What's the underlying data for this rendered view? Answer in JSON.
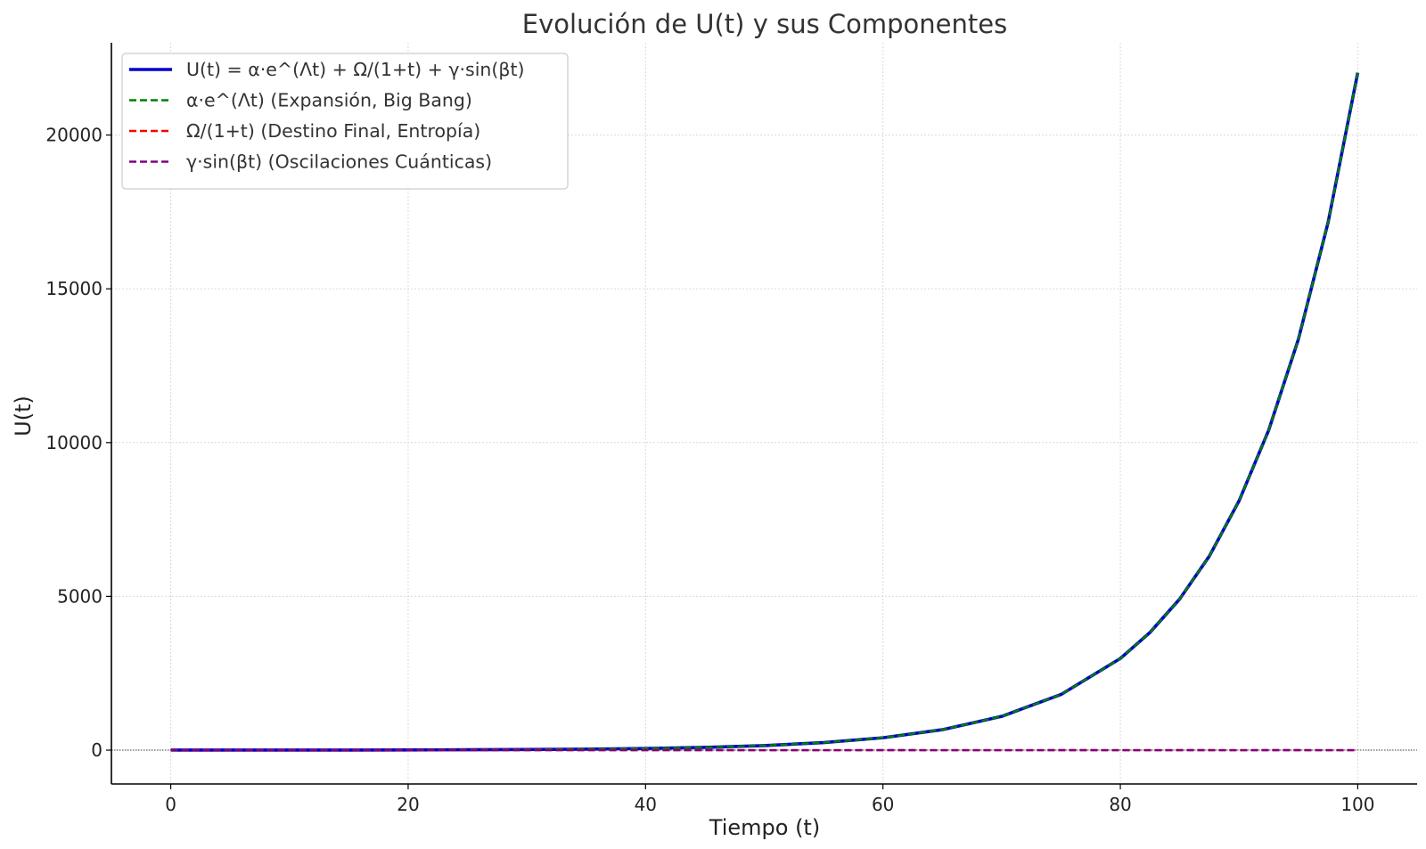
{
  "chart_data": {
    "type": "line",
    "title": "Evolución de U(t) y sus Componentes",
    "xlabel": "Tiempo (t)",
    "ylabel": "U(t)",
    "xlim": [
      -5,
      105
    ],
    "ylim": [
      -1100,
      23000
    ],
    "xticks": [
      0,
      20,
      40,
      60,
      80,
      100
    ],
    "yticks": [
      0,
      5000,
      10000,
      15000,
      20000
    ],
    "grid": true,
    "legend_position": "top-left",
    "x": [
      0,
      5,
      10,
      15,
      20,
      25,
      30,
      35,
      40,
      45,
      50,
      55,
      60,
      65,
      70,
      75,
      80,
      82.5,
      85,
      87.5,
      90,
      92.5,
      95,
      97.5,
      100
    ],
    "series": [
      {
        "name": "U(t) = α·e^(Λt) + Ω/(1+t) + γ·sin(βt)",
        "color": "#0000cc",
        "style": "solid",
        "values": [
          2,
          1.2,
          2.5,
          4,
          7,
          13,
          20,
          33,
          55,
          90,
          148,
          244,
          403,
          665,
          1097,
          1808,
          2981,
          3828,
          4914,
          6310,
          8103,
          10405,
          13360,
          17154,
          22026
        ]
      },
      {
        "name": "α·e^(Λt) (Expansión, Big Bang)",
        "color": "#008000",
        "style": "dashed",
        "values": [
          1,
          1.6,
          2.7,
          4.5,
          7.4,
          12.2,
          20.1,
          33.1,
          54.6,
          90,
          148,
          244,
          403,
          665,
          1097,
          1808,
          2981,
          3828,
          4914,
          6310,
          8103,
          10405,
          13360,
          17154,
          22026
        ]
      },
      {
        "name": "Ω/(1+t) (Destino Final, Entropía)",
        "color": "#ff0000",
        "style": "dashed",
        "values": [
          1,
          0.17,
          0.09,
          0.06,
          0.05,
          0.04,
          0.03,
          0.03,
          0.02,
          0.02,
          0.02,
          0.02,
          0.02,
          0.02,
          0.01,
          0.01,
          0.01,
          0.01,
          0.01,
          0.01,
          0.01,
          0.01,
          0.01,
          0.01,
          0.01
        ]
      },
      {
        "name": "γ·sin(βt) (Oscilaciones Cuánticas)",
        "color": "#800080",
        "style": "dashed",
        "values": [
          0,
          -0.6,
          -0.3,
          0.9,
          -0.4,
          -0.1,
          1,
          -0.5,
          0.1,
          0.9,
          -0.3,
          -0.7,
          0.9,
          -0.2,
          -0.8,
          0.8,
          0,
          -0.9,
          0.7,
          0.5,
          -0.2,
          0.8,
          0.9,
          -0.6,
          -0.5
        ]
      }
    ]
  }
}
